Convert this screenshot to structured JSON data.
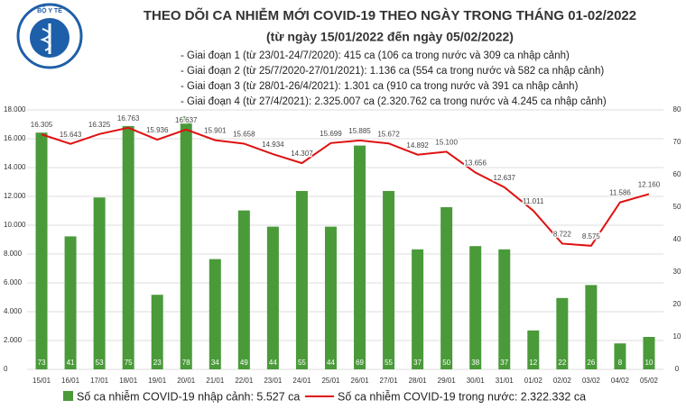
{
  "header": {
    "logo_text": "BỘ Y TẾ"
  },
  "chart_data": {
    "type": "combo",
    "title": "THEO DÕI CA NHIỄM MỚI COVID-19 THEO NGÀY TRONG THÁNG 01-02/2022",
    "subtitle": "(từ ngày 15/01/2022 đến ngày 05/02/2022)",
    "notes": [
      "- Giai đoạn 1 (từ 23/01-24/7/2020): 415 ca (106 ca trong nước và 309 ca nhập cảnh)",
      "- Giai đoạn 2 (từ 25/7/2020-27/01/2021): 1.136 ca (554 ca trong nước và 582 ca nhập cảnh)",
      "- Giai đoạn 3 (từ 28/01-26/4/2021): 1.301 ca (910 ca trong nước và 391 ca nhập cảnh)",
      "- Giai đoạn 4 (từ 27/4/2021): 2.325.007 ca (2.320.762 ca trong nước và 4.245 ca nhập cảnh)"
    ],
    "categories": [
      "15/01",
      "16/01",
      "17/01",
      "18/01",
      "19/01",
      "20/01",
      "21/01",
      "22/01",
      "23/01",
      "24/01",
      "25/01",
      "26/01",
      "27/01",
      "28/01",
      "29/01",
      "30/01",
      "31/01",
      "01/02",
      "02/02",
      "03/02",
      "04/02",
      "05/02"
    ],
    "series": [
      {
        "name": "Số ca nhiễm COVID-19 nhập cảnh: 5.527 ca",
        "type": "bar",
        "axis": "y2",
        "color": "#4a9a3a",
        "values": [
          73,
          41,
          53,
          75,
          23,
          78,
          34,
          49,
          44,
          55,
          44,
          69,
          55,
          37,
          50,
          38,
          37,
          12,
          22,
          26,
          8,
          10
        ]
      },
      {
        "name": "Số ca nhiễm COVID-19 trong nước: 2.322.332 ca",
        "type": "line",
        "color": "#e01010",
        "values": [
          16305,
          15643,
          16325,
          16763,
          15936,
          16637,
          15901,
          15658,
          14934,
          14307,
          15699,
          15885,
          15672,
          14892,
          15100,
          13656,
          12637,
          11011,
          8722,
          8575,
          11586,
          12160
        ],
        "value_labels": [
          "16.305",
          "15.643",
          "16.325",
          "16.763",
          "15.936",
          "16.637",
          "15.901",
          "15.658",
          "14.934",
          "14.307",
          "15.699",
          "15.885",
          "15.672",
          "14.892",
          "15.100",
          "13.656",
          "12.637",
          "11.011",
          "8.722",
          "8.575",
          "11.586",
          "12.160"
        ]
      }
    ],
    "ylim": [
      0,
      18000
    ],
    "yticks": [
      0,
      {
        "value": 2000,
        "label": "2.000"
      },
      {
        "value": 4000,
        "label": "4.000"
      },
      {
        "value": 6000,
        "label": "6.000"
      },
      {
        "value": 8000,
        "label": "8.000"
      },
      {
        "value": 10000,
        "label": "10.000"
      },
      {
        "value": 12000,
        "label": "12.000"
      },
      {
        "value": 14000,
        "label": "14.000"
      },
      {
        "value": 16000,
        "label": "16.000"
      },
      {
        "value": 18000,
        "label": "18.000"
      }
    ],
    "y2lim": [
      0,
      80
    ],
    "y2ticks": [
      0,
      10,
      20,
      30,
      40,
      50,
      60,
      70,
      80
    ],
    "grid": true
  }
}
